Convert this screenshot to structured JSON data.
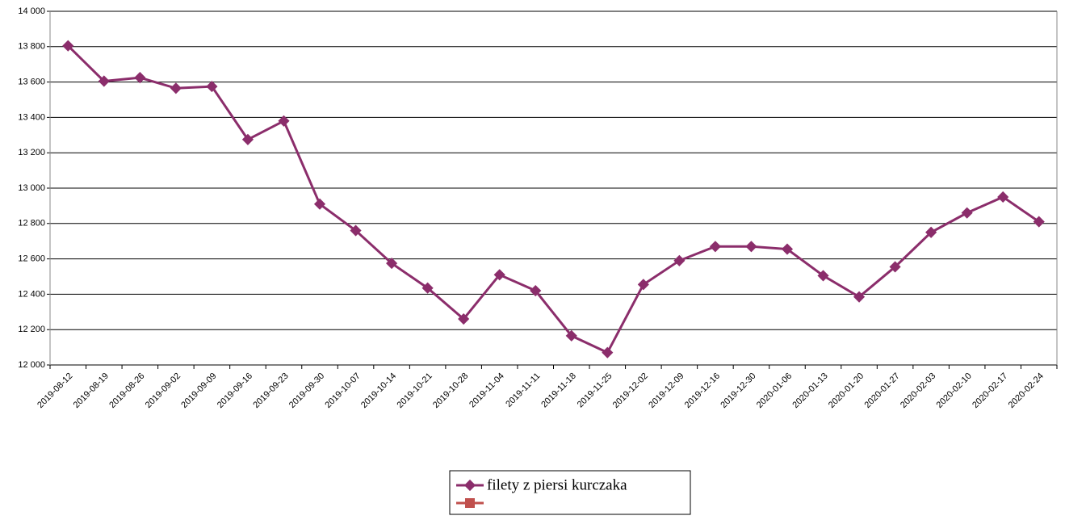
{
  "chart_data": {
    "type": "line",
    "categories": [
      "2019-08-12",
      "2019-08-19",
      "2019-08-26",
      "2019-09-02",
      "2019-09-09",
      "2019-09-16",
      "2019-09-23",
      "2019-09-30",
      "2019-10-07",
      "2019-10-14",
      "2019-10-21",
      "2019-10-28",
      "2019-11-04",
      "2019-11-11",
      "2019-11-18",
      "2019-11-25",
      "2019-12-02",
      "2019-12-09",
      "2019-12-16",
      "2019-12-30",
      "2020-01-06",
      "2020-01-13",
      "2020-01-20",
      "2020-01-27",
      "2020-02-03",
      "2020-02-10",
      "2020-02-17",
      "2020-02-24"
    ],
    "series": [
      {
        "name": "filety z piersi kurczaka",
        "color": "#8b2d6b",
        "values": [
          13805,
          13605,
          13625,
          13565,
          13575,
          13275,
          13380,
          12910,
          12760,
          12575,
          12435,
          12260,
          12510,
          12420,
          12165,
          12070,
          12455,
          12590,
          12670,
          12670,
          12655,
          12505,
          12385,
          12555,
          12750,
          12860,
          12950,
          12810
        ]
      },
      {
        "color": "#c0504d",
        "values": [
          null,
          null,
          null,
          null,
          null,
          null,
          null,
          null,
          null,
          null,
          null,
          null,
          null,
          null,
          null,
          null,
          null,
          null,
          null,
          null,
          null,
          null,
          null,
          null,
          null,
          null,
          null,
          null
        ]
      }
    ],
    "ylim": [
      12000,
      14000
    ],
    "yticks": [
      {
        "value": 12000,
        "label": "12 000"
      },
      {
        "value": 12200,
        "label": "12 200"
      },
      {
        "value": 12400,
        "label": "12 400"
      },
      {
        "value": 12600,
        "label": "12 600"
      },
      {
        "value": 12800,
        "label": "12 800"
      },
      {
        "value": 13000,
        "label": "13 000"
      },
      {
        "value": 13200,
        "label": "13 200"
      },
      {
        "value": 13400,
        "label": "13 400"
      },
      {
        "value": 13600,
        "label": "13 600"
      },
      {
        "value": 13800,
        "label": "13 800"
      },
      {
        "value": 14000,
        "label": "14 000"
      }
    ],
    "grid": true,
    "legend": "bottom"
  }
}
